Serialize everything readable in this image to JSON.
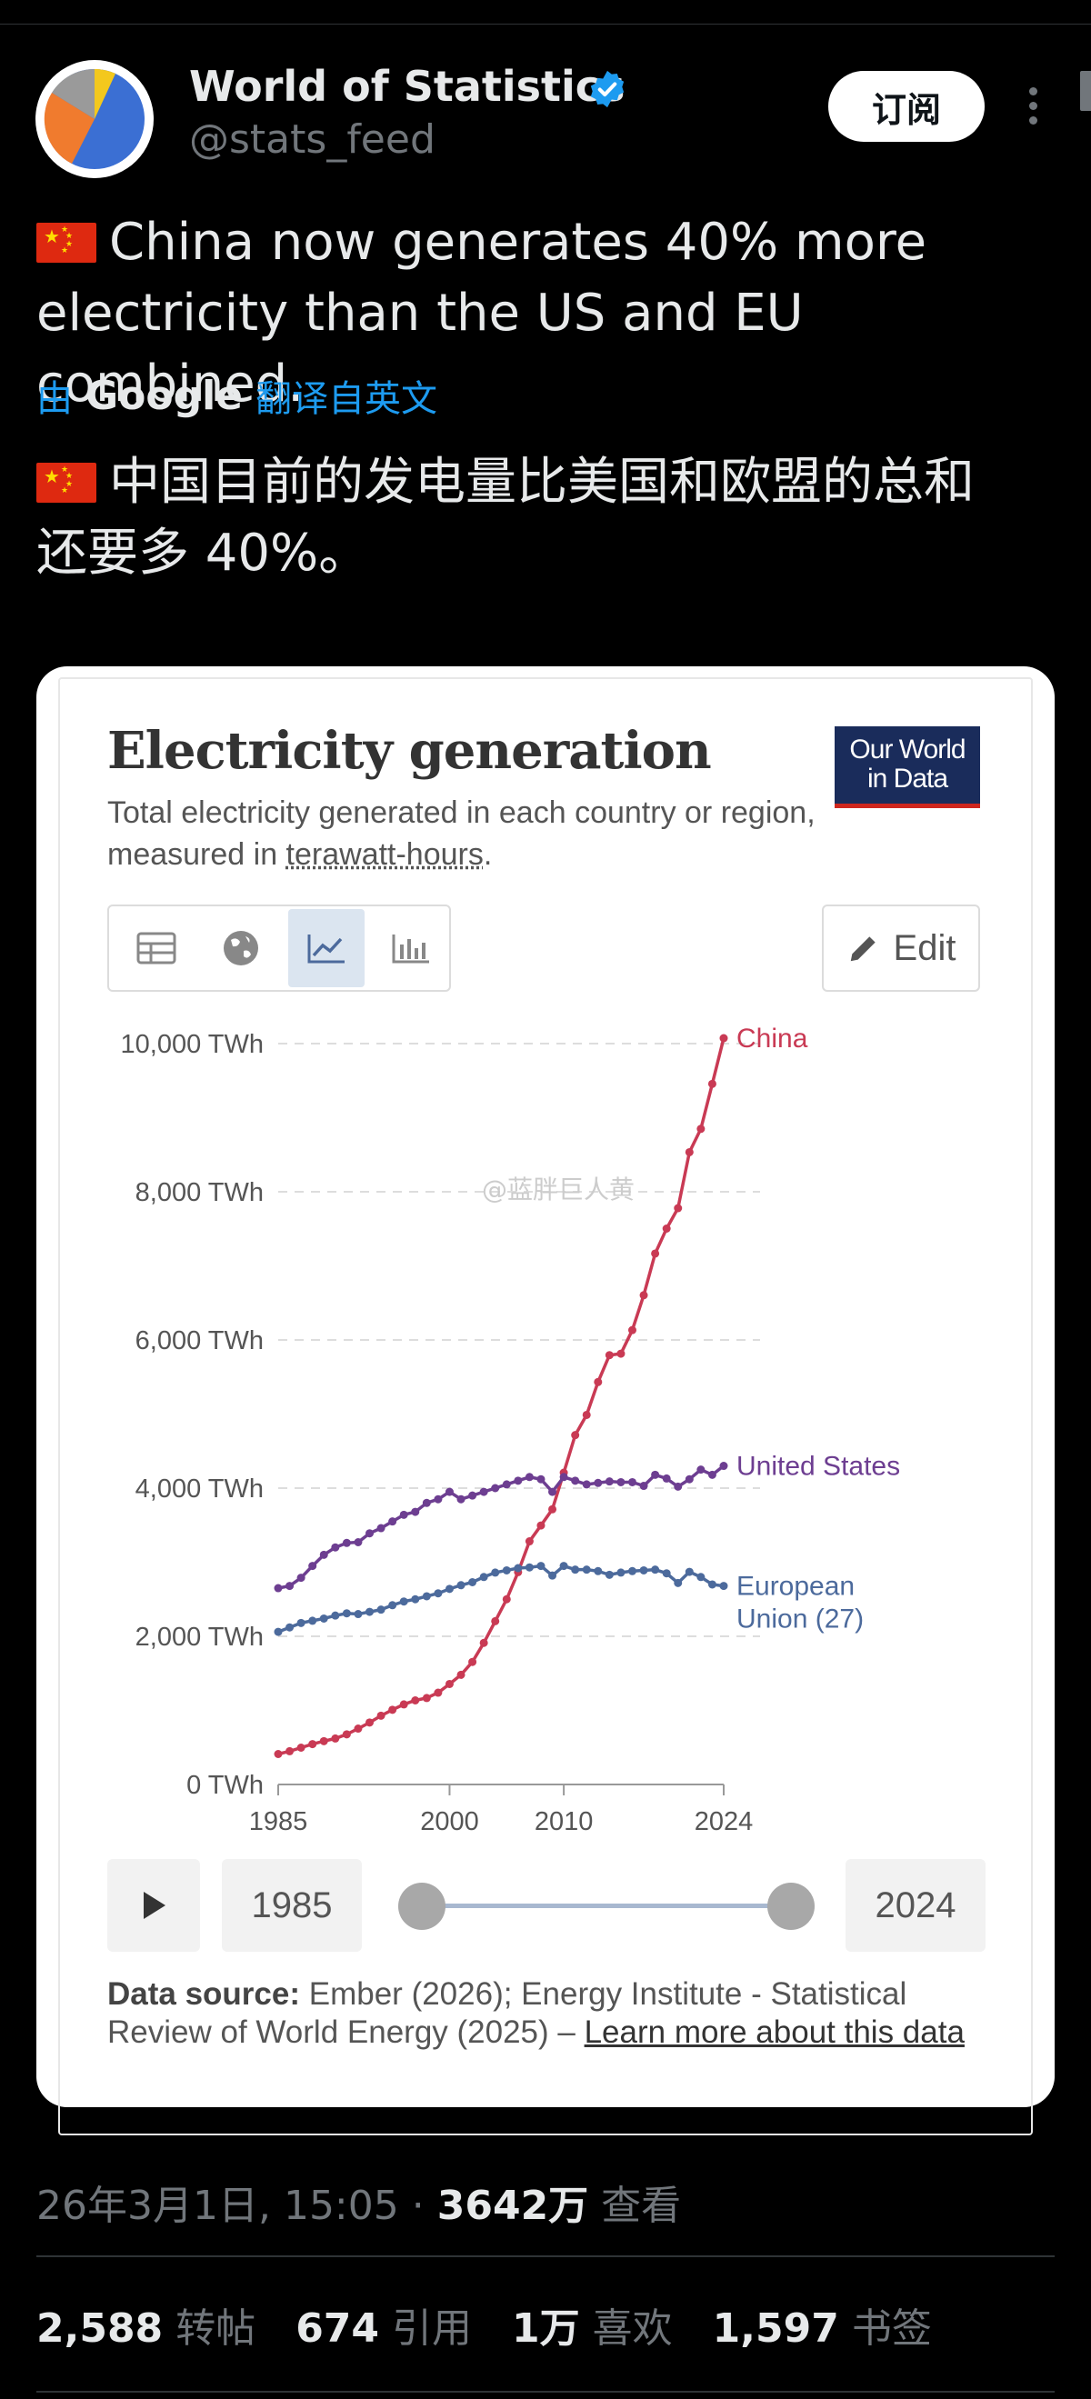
{
  "account": {
    "name": "World of Statistics",
    "handle": "@stats_feed",
    "verified_icon": "verified-badge-icon"
  },
  "subscribe_label": "订阅",
  "tweet": {
    "text_en": "China now generates 40% more electricity than the US and EU combined.",
    "translate_prefix": "由",
    "translate_brand": "Google",
    "translate_suffix": "翻译自英文",
    "text_zh_line1": "中国目前的发电量比美国和欧盟的总和",
    "text_zh_line2": "还要多 40%。"
  },
  "card": {
    "title": "Electricity generation",
    "subtitle_pre": "Total electricity generated in each country or region, measured in ",
    "subtitle_link": "terawatt-hours",
    "subtitle_post": ".",
    "logo_line1": "Our World",
    "logo_line2": "in Data",
    "edit_label": "Edit",
    "start_year": "1985",
    "end_year": "2024",
    "watermark": "@蓝胖巨人黄",
    "source_label": "Data source:",
    "source_text": " Ember (2026); Energy Institute - Statistical Review of World Energy (2025) – ",
    "source_link": "Learn more about this data"
  },
  "chart_data": {
    "type": "line",
    "title": "Electricity generation",
    "ylabel": "TWh",
    "ylim": [
      0,
      10000
    ],
    "yticks": [
      0,
      2000,
      4000,
      6000,
      8000,
      10000
    ],
    "ytick_labels": [
      "0 TWh",
      "2,000 TWh",
      "4,000 TWh",
      "6,000 TWh",
      "8,000 TWh",
      "10,000 TWh"
    ],
    "xticks": [
      1985,
      2000,
      2010,
      2024
    ],
    "x": [
      1985,
      1986,
      1987,
      1988,
      1989,
      1990,
      1991,
      1992,
      1993,
      1994,
      1995,
      1996,
      1997,
      1998,
      1999,
      2000,
      2001,
      2002,
      2003,
      2004,
      2005,
      2006,
      2007,
      2008,
      2009,
      2010,
      2011,
      2012,
      2013,
      2014,
      2015,
      2016,
      2017,
      2018,
      2019,
      2020,
      2021,
      2022,
      2023,
      2024
    ],
    "series": [
      {
        "name": "China",
        "label": "China",
        "color": "#c93a54",
        "values": [
          411,
          449,
          497,
          545,
          585,
          621,
          677,
          754,
          836,
          928,
          1008,
          1081,
          1135,
          1167,
          1239,
          1356,
          1480,
          1654,
          1911,
          2204,
          2500,
          2866,
          3282,
          3496,
          3714,
          4208,
          4716,
          4988,
          5432,
          5795,
          5815,
          6133,
          6604,
          7166,
          7503,
          7779,
          8534,
          8849,
          9456,
          10073
        ]
      },
      {
        "name": "United States",
        "label": "United States",
        "color": "#6d3e91",
        "values": [
          2650,
          2680,
          2790,
          2950,
          3100,
          3200,
          3260,
          3270,
          3390,
          3460,
          3550,
          3640,
          3680,
          3800,
          3850,
          3950,
          3850,
          3900,
          3950,
          4000,
          4050,
          4100,
          4150,
          4120,
          3950,
          4150,
          4100,
          4050,
          4070,
          4090,
          4080,
          4080,
          4030,
          4180,
          4130,
          4020,
          4120,
          4250,
          4180,
          4300
        ]
      },
      {
        "name": "European Union (27)",
        "label": "European Union (27)",
        "color": "#4c6a9c",
        "values": [
          2060,
          2120,
          2180,
          2210,
          2240,
          2280,
          2310,
          2300,
          2330,
          2360,
          2420,
          2470,
          2500,
          2540,
          2580,
          2640,
          2690,
          2730,
          2800,
          2860,
          2890,
          2920,
          2930,
          2950,
          2820,
          2950,
          2900,
          2900,
          2880,
          2830,
          2860,
          2880,
          2890,
          2900,
          2850,
          2720,
          2870,
          2800,
          2700,
          2680
        ]
      }
    ]
  },
  "footer": {
    "datetime": "26年3月1日, 15:05",
    "separator": " · ",
    "views": "3642万",
    "views_label": " 查看",
    "reposts": "2,588",
    "reposts_label": "转帖",
    "quotes": "674",
    "quotes_label": "引用",
    "likes": "1万",
    "likes_label": "喜欢",
    "bookmarks": "1,597",
    "bookmarks_label": "书签"
  }
}
